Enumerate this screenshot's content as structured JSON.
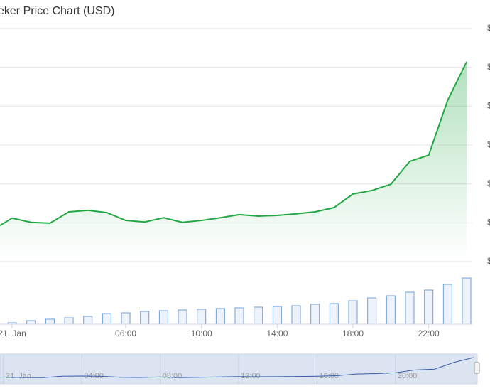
{
  "chart_data": {
    "type": "line",
    "title": "eker Price Chart (USD)",
    "x": [
      -0.64,
      0,
      1,
      2,
      3,
      4,
      5,
      6,
      7,
      8,
      9,
      10,
      11,
      12,
      13,
      14,
      15,
      16,
      17,
      18,
      19,
      20,
      21,
      22,
      23,
      24
    ],
    "values": [
      0.93,
      1.12,
      1.01,
      0.99,
      1.28,
      1.32,
      1.26,
      1.06,
      1.02,
      1.13,
      1.01,
      1.06,
      1.13,
      1.21,
      1.17,
      1.19,
      1.23,
      1.28,
      1.39,
      1.74,
      1.83,
      1.99,
      2.58,
      2.74,
      4.15,
      5.14
    ],
    "color": "#22a744",
    "xlim": [
      -0.64,
      24.3
    ],
    "xticks": [
      {
        "value": 0,
        "label": "21. Jan"
      },
      {
        "value": 6,
        "label": "06:00"
      },
      {
        "value": 10,
        "label": "10:00"
      },
      {
        "value": 14,
        "label": "14:00"
      },
      {
        "value": 18,
        "label": "18:00"
      },
      {
        "value": 22,
        "label": "22:00"
      }
    ],
    "ylim": [
      0,
      6
    ],
    "yticks": [
      {
        "value": 0,
        "label": "$"
      },
      {
        "value": 1,
        "label": "$"
      },
      {
        "value": 2,
        "label": "$"
      },
      {
        "value": 3,
        "label": "$"
      },
      {
        "value": 4,
        "label": "$"
      },
      {
        "value": 5,
        "label": "$"
      },
      {
        "value": 6,
        "label": "$"
      }
    ],
    "grid": true,
    "volume": {
      "x": [
        0,
        1,
        2,
        3,
        4,
        5,
        6,
        7,
        8,
        9,
        10,
        11,
        12,
        13,
        14,
        15,
        16,
        17,
        18,
        19,
        20,
        21,
        22,
        23,
        24
      ],
      "values": [
        2,
        5,
        7,
        9,
        11,
        15,
        16,
        18,
        19,
        20,
        21,
        22,
        23,
        24,
        25,
        26,
        28,
        29,
        33,
        37,
        40,
        45,
        48,
        56,
        65
      ],
      "ylim": [
        0,
        70
      ],
      "color": "#6f9fd8"
    },
    "navigator": {
      "xlim": [
        -0.18,
        24.1
      ],
      "ylim": [
        0,
        6
      ],
      "color": "#335cad",
      "xticks": [
        {
          "value": 0,
          "label": "21. Jan"
        },
        {
          "value": 4,
          "label": "04:00"
        },
        {
          "value": 8,
          "label": "08:00"
        },
        {
          "value": 12,
          "label": "12:00"
        },
        {
          "value": 16,
          "label": "16:00"
        },
        {
          "value": 20,
          "label": "20:00"
        }
      ]
    }
  }
}
